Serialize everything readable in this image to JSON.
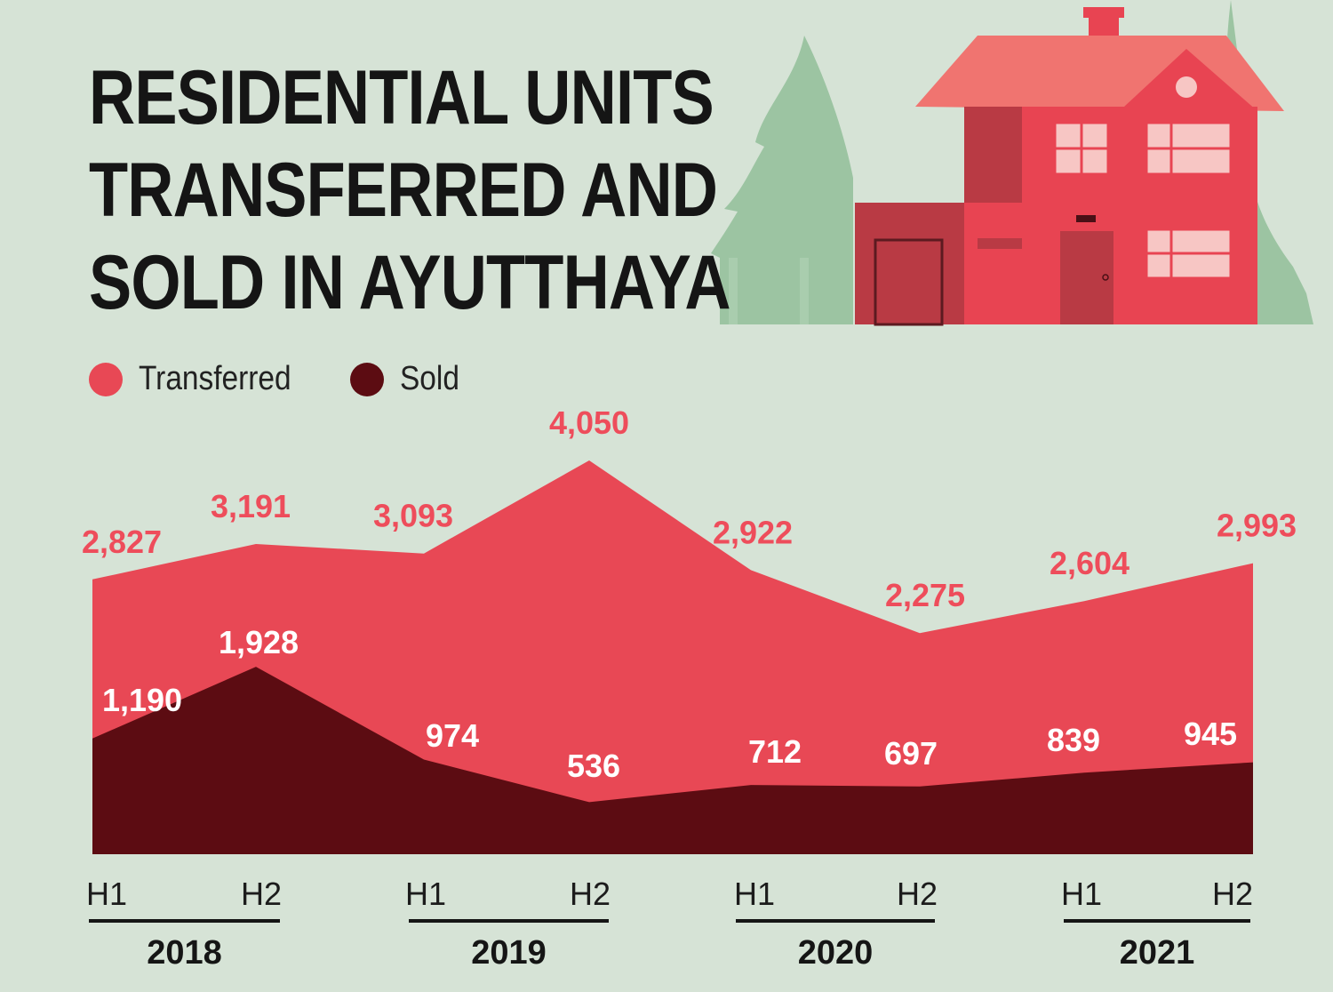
{
  "title_lines": [
    "RESIDENTIAL UNITS",
    "TRANSFERRED AND",
    "SOLD IN AYUTTHAYA"
  ],
  "colors": {
    "background": "#d6e3d6",
    "transferred": "#e84855",
    "sold": "#5c0c12",
    "transferred_label": "#ee4d5b",
    "sold_label": "#ffffff",
    "house_main": "#e84452",
    "house_dark": "#b93a44",
    "house_roof": "#f07470",
    "trees": "#9cc4a2"
  },
  "legend": [
    {
      "label": "Transferred",
      "color": "#e84855"
    },
    {
      "label": "Sold",
      "color": "#5c0c12"
    }
  ],
  "chart_data": {
    "type": "area",
    "categories": [
      "H1",
      "H2",
      "H1",
      "H2",
      "H1",
      "H2",
      "H1",
      "H2"
    ],
    "groups": [
      {
        "label": "2018",
        "categories": [
          "H1",
          "H2"
        ]
      },
      {
        "label": "2019",
        "categories": [
          "H1",
          "H2"
        ]
      },
      {
        "label": "2020",
        "categories": [
          "H1",
          "H2"
        ]
      },
      {
        "label": "2021",
        "categories": [
          "H1",
          "H2"
        ]
      }
    ],
    "series": [
      {
        "name": "Transferred",
        "values": [
          2827,
          3191,
          3093,
          4050,
          2922,
          2275,
          2604,
          2993
        ],
        "labels": [
          "2,827",
          "3,191",
          "3,093",
          "4,050",
          "2,922",
          "2,275",
          "2,604",
          "2,993"
        ]
      },
      {
        "name": "Sold",
        "values": [
          1190,
          1928,
          974,
          536,
          712,
          697,
          839,
          945
        ],
        "labels": [
          "1,190",
          "1,928",
          "974",
          "536",
          "712",
          "697",
          "839",
          "945"
        ]
      }
    ],
    "ylim": [
      0,
      4400
    ],
    "grid": false,
    "legend_position": "top-left"
  }
}
